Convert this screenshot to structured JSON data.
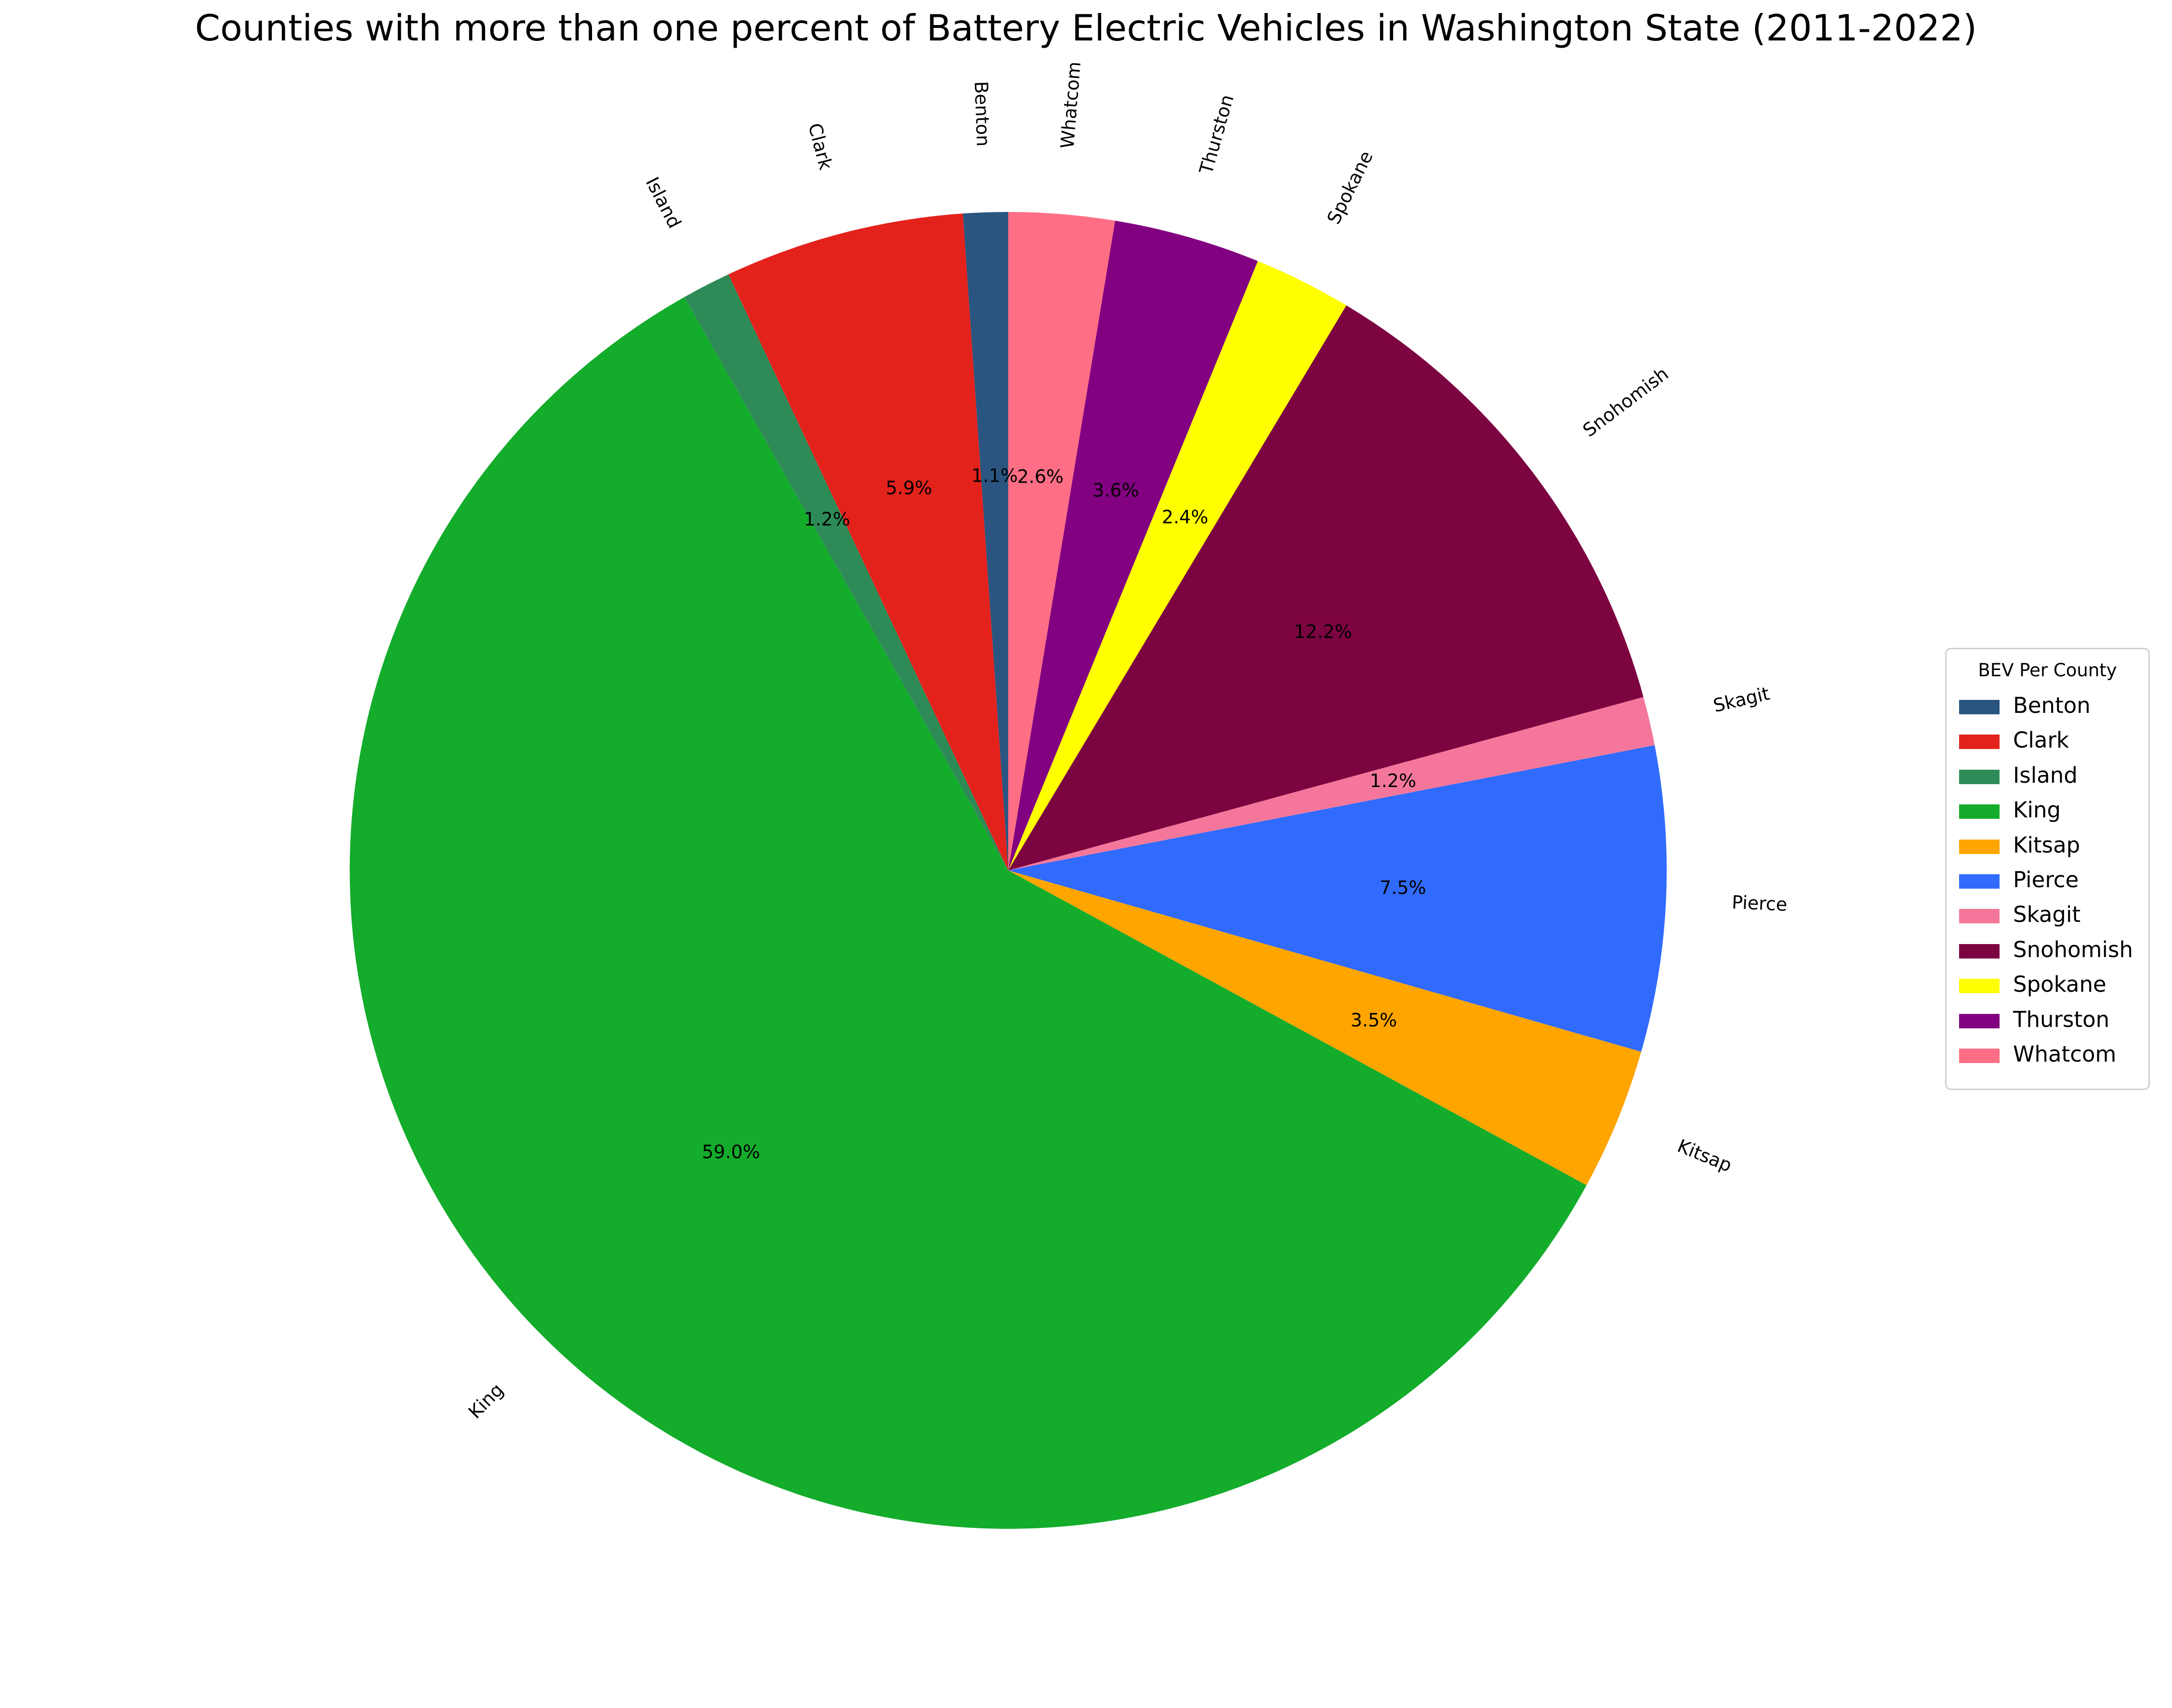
{
  "chart_data": {
    "type": "pie",
    "title": "Counties with more than one percent of Battery Electric Vehicles in Washington State (2011-2022)",
    "legend": {
      "title": "BEV Per County",
      "placement": "right"
    },
    "start_angle_deg": 90,
    "direction": "counterclockwise",
    "slices": [
      {
        "label": "Benton",
        "value": 1.1,
        "pct_label": "1.1%",
        "color": "#2a5580"
      },
      {
        "label": "Clark",
        "value": 5.9,
        "pct_label": "5.9%",
        "color": "#e3221b"
      },
      {
        "label": "Island",
        "value": 1.2,
        "pct_label": "1.2%",
        "color": "#2e8b57"
      },
      {
        "label": "King",
        "value": 59.0,
        "pct_label": "59.0%",
        "color": "#13ac2b"
      },
      {
        "label": "Kitsap",
        "value": 3.5,
        "pct_label": "3.5%",
        "color": "#ffa500"
      },
      {
        "label": "Pierce",
        "value": 7.5,
        "pct_label": "7.5%",
        "color": "#316bfe"
      },
      {
        "label": "Skagit",
        "value": 1.2,
        "pct_label": "1.2%",
        "color": "#f4779b"
      },
      {
        "label": "Snohomish",
        "value": 12.2,
        "pct_label": "12.2%",
        "color": "#7c0441"
      },
      {
        "label": "Spokane",
        "value": 2.4,
        "pct_label": "2.4%",
        "color": "#ffff00"
      },
      {
        "label": "Thurston",
        "value": 3.6,
        "pct_label": "3.6%",
        "color": "#820180"
      },
      {
        "label": "Whatcom",
        "value": 2.6,
        "pct_label": "2.6%",
        "color": "#fe6e84"
      }
    ]
  }
}
